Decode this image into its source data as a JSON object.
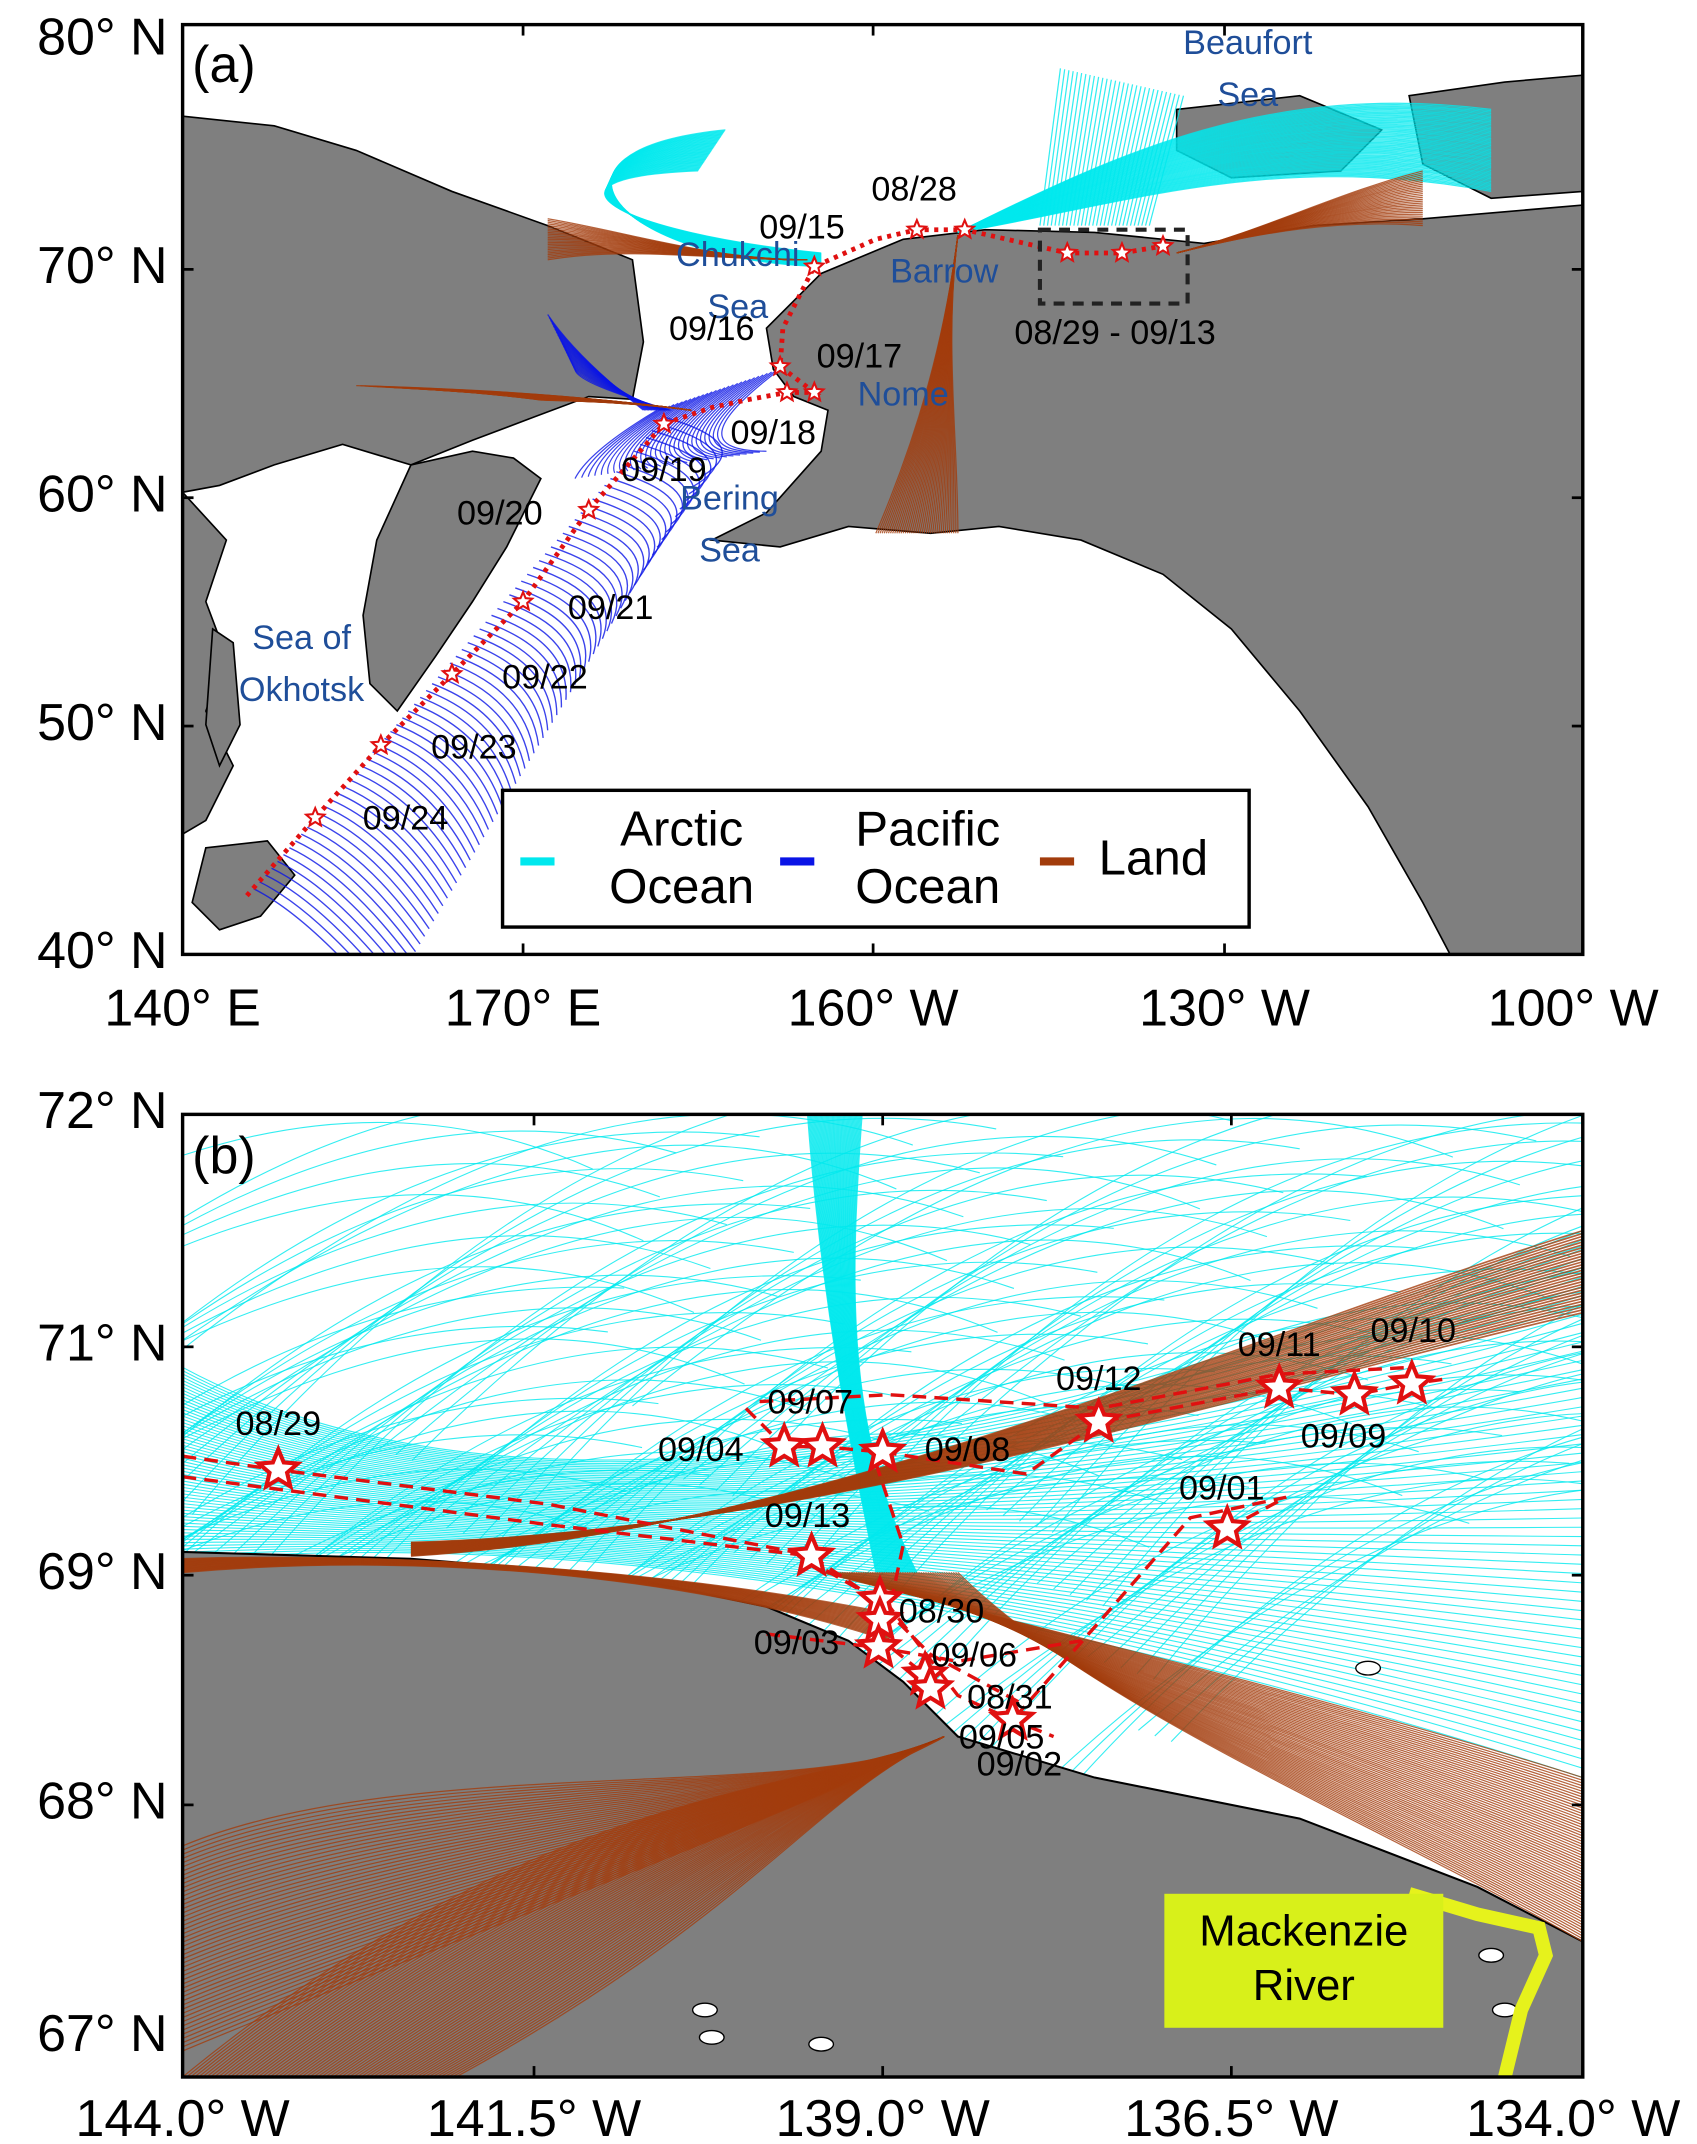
{
  "panels": [
    {
      "label": "(a)",
      "y_axis_labels": [
        "80° N",
        "70° N",
        "60° N",
        "50° N",
        "40° N"
      ],
      "x_axis_labels": [
        "140° E",
        "170° E",
        "160° W",
        "130° W",
        "100° W"
      ],
      "place_labels": [
        "Beaufort Sea",
        "Chukchi Sea",
        "Barrow",
        "Nome",
        "Bering Sea",
        "Sea of Okhotsk"
      ],
      "date_labels": [
        "08/28",
        "09/15",
        "08/29 - 09/13",
        "09/16",
        "09/17",
        "09/18",
        "09/19",
        "09/20",
        "09/21",
        "09/22",
        "09/23",
        "09/24"
      ],
      "legend": [
        {
          "label": "Arctic Ocean",
          "color": "#00e8ee"
        },
        {
          "label": "Pacific Ocean",
          "color": "#0a14e6"
        },
        {
          "label": "Land",
          "color": "#a23c0c"
        }
      ]
    },
    {
      "label": "(b)",
      "y_axis_labels": [
        "72° N",
        "71° N",
        "69° N",
        "68° N",
        "67° N"
      ],
      "x_axis_labels": [
        "144.0° W",
        "141.5° W",
        "139.0° W",
        "136.5° W",
        "134.0° W"
      ],
      "date_labels": [
        "08/29",
        "09/07",
        "09/04",
        "09/08",
        "09/12",
        "09/11",
        "09/10",
        "09/09",
        "09/01",
        "09/13",
        "08/30",
        "09/06",
        "09/03",
        "08/31",
        "09/05",
        "09/02"
      ],
      "river_label": "Mackenzie River"
    }
  ]
}
